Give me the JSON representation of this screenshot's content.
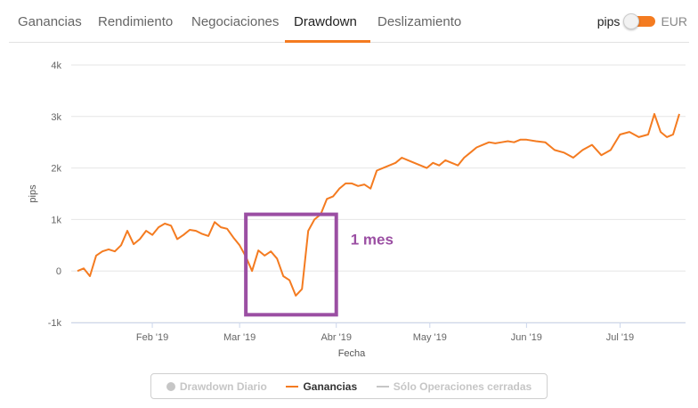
{
  "tabs": [
    {
      "label": "Ganancias",
      "active": false
    },
    {
      "label": "Rendimiento",
      "active": false
    },
    {
      "label": "Negociaciones",
      "active": false
    },
    {
      "label": "Drawdown",
      "active": true
    },
    {
      "label": "Deslizamiento",
      "active": false
    }
  ],
  "unit_toggle": {
    "left_label": "pips",
    "right_label": "EUR",
    "selected": "EUR"
  },
  "colors": {
    "accent": "#f47b20",
    "annotation": "#9b4fa3",
    "legend_off": "#c6c6c6"
  },
  "chart_data": {
    "type": "line",
    "xlabel": "Fecha",
    "ylabel": "pips",
    "ylim": [
      -1000,
      4000
    ],
    "yticks": [
      -1000,
      0,
      1000,
      2000,
      3000,
      4000
    ],
    "ytick_labels": [
      "-1k",
      "0",
      "1k",
      "2k",
      "3k",
      "4k"
    ],
    "xlim": [
      "2019-01-06",
      "2019-07-22"
    ],
    "xticks": [
      "2019-02-01",
      "2019-03-01",
      "2019-04-01",
      "2019-05-01",
      "2019-06-01",
      "2019-07-01"
    ],
    "xtick_labels": [
      "Feb '19",
      "Mar '19",
      "Abr '19",
      "May '19",
      "Jun '19",
      "Jul '19"
    ],
    "grid": "horizontal",
    "series": [
      {
        "name": "Ganancias",
        "color": "#f47b20",
        "x": [
          "2019-01-08",
          "2019-01-10",
          "2019-01-12",
          "2019-01-14",
          "2019-01-16",
          "2019-01-18",
          "2019-01-20",
          "2019-01-22",
          "2019-01-24",
          "2019-01-26",
          "2019-01-28",
          "2019-01-30",
          "2019-02-01",
          "2019-02-03",
          "2019-02-05",
          "2019-02-07",
          "2019-02-09",
          "2019-02-11",
          "2019-02-13",
          "2019-02-15",
          "2019-02-17",
          "2019-02-19",
          "2019-02-21",
          "2019-02-23",
          "2019-02-25",
          "2019-02-27",
          "2019-03-01",
          "2019-03-03",
          "2019-03-05",
          "2019-03-07",
          "2019-03-09",
          "2019-03-11",
          "2019-03-13",
          "2019-03-15",
          "2019-03-17",
          "2019-03-19",
          "2019-03-21",
          "2019-03-23",
          "2019-03-25",
          "2019-03-27",
          "2019-03-29",
          "2019-03-31",
          "2019-04-02",
          "2019-04-04",
          "2019-04-06",
          "2019-04-08",
          "2019-04-10",
          "2019-04-12",
          "2019-04-14",
          "2019-04-16",
          "2019-04-18",
          "2019-04-20",
          "2019-04-22",
          "2019-04-24",
          "2019-04-26",
          "2019-04-28",
          "2019-04-30",
          "2019-05-02",
          "2019-05-04",
          "2019-05-06",
          "2019-05-08",
          "2019-05-10",
          "2019-05-12",
          "2019-05-14",
          "2019-05-16",
          "2019-05-18",
          "2019-05-20",
          "2019-05-22",
          "2019-05-24",
          "2019-05-26",
          "2019-05-28",
          "2019-05-30",
          "2019-06-01",
          "2019-06-04",
          "2019-06-07",
          "2019-06-10",
          "2019-06-13",
          "2019-06-16",
          "2019-06-19",
          "2019-06-22",
          "2019-06-25",
          "2019-06-28",
          "2019-07-01",
          "2019-07-04",
          "2019-07-07",
          "2019-07-10",
          "2019-07-12",
          "2019-07-14",
          "2019-07-16",
          "2019-07-18",
          "2019-07-20"
        ],
        "values": [
          0,
          50,
          -100,
          300,
          380,
          420,
          380,
          500,
          780,
          520,
          620,
          780,
          700,
          850,
          920,
          880,
          620,
          700,
          800,
          780,
          720,
          680,
          950,
          850,
          820,
          650,
          500,
          280,
          0,
          400,
          300,
          380,
          240,
          -100,
          -180,
          -480,
          -350,
          780,
          1000,
          1100,
          1400,
          1450,
          1600,
          1700,
          1700,
          1650,
          1680,
          1600,
          1950,
          2000,
          2050,
          2100,
          2200,
          2150,
          2100,
          2050,
          2000,
          2100,
          2050,
          2150,
          2100,
          2050,
          2200,
          2300,
          2400,
          2450,
          2500,
          2480,
          2500,
          2520,
          2500,
          2550,
          2550,
          2520,
          2500,
          2350,
          2300,
          2200,
          2350,
          2450,
          2250,
          2350,
          2650,
          2700,
          2600,
          2650,
          3050,
          2700,
          2600,
          2650,
          3050
        ]
      }
    ],
    "annotations": [
      {
        "type": "box",
        "x_start": "2019-03-03",
        "x_end": "2019-04-01",
        "y_low": -850,
        "y_high": 1100,
        "color": "#9b4fa3",
        "label": "1 mes"
      }
    ],
    "legend": {
      "placement": "bottom",
      "items": [
        {
          "label": "Drawdown Diario",
          "active": false,
          "marker": "dot"
        },
        {
          "label": "Ganancias",
          "active": true,
          "marker": "line"
        },
        {
          "label": "Sólo Operaciones cerradas",
          "active": false,
          "marker": "line"
        }
      ]
    }
  }
}
